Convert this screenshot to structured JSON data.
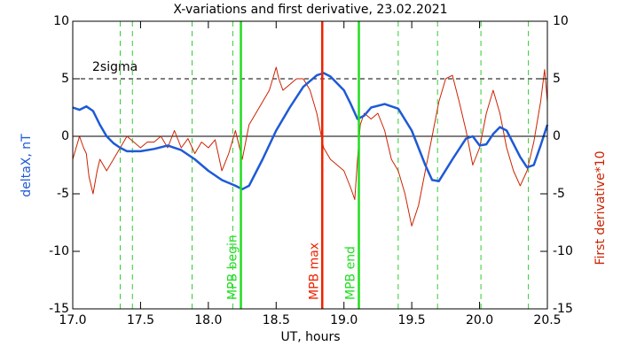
{
  "chart_data": {
    "type": "line",
    "title": "X-variations and first derivative, 23.02.2021",
    "xlabel": "UT, hours",
    "ylabel": "deltaX, nT",
    "y2label": "First derivative*10",
    "xlim": [
      17.0,
      20.5
    ],
    "xticks": [
      {
        "value": 17,
        "label": "17.0"
      },
      {
        "value": 17.5,
        "label": "17.5"
      },
      {
        "value": 18,
        "label": "18.0"
      },
      {
        "value": 18.5,
        "label": "18.5"
      },
      {
        "value": 19,
        "label": "19.0"
      },
      {
        "value": 19.5,
        "label": "19.5"
      },
      {
        "value": 20,
        "label": "20.0"
      },
      {
        "value": 20.5,
        "label": "20.5"
      }
    ],
    "ylim": [
      -15,
      10
    ],
    "yticks": [
      10,
      5,
      0,
      -5,
      -10,
      -15
    ],
    "y2lim": [
      -15,
      10
    ],
    "y2ticks": [
      10,
      5,
      0,
      -5,
      -10,
      -15
    ],
    "series": [
      {
        "name": "deltaX, nT",
        "color": "#1e5ad6",
        "x": [
          17.0,
          17.05,
          17.1,
          17.15,
          17.2,
          17.25,
          17.3,
          17.35,
          17.4,
          17.5,
          17.6,
          17.7,
          17.8,
          17.9,
          18.0,
          18.1,
          18.2,
          18.25,
          18.3,
          18.4,
          18.5,
          18.6,
          18.7,
          18.8,
          18.85,
          18.9,
          19.0,
          19.05,
          19.1,
          19.15,
          19.2,
          19.3,
          19.4,
          19.5,
          19.6,
          19.65,
          19.7,
          19.8,
          19.9,
          19.95,
          20.0,
          20.05,
          20.1,
          20.15,
          20.2,
          20.3,
          20.35,
          20.4,
          20.45,
          20.5
        ],
        "values": [
          2.5,
          2.3,
          2.6,
          2.2,
          1.0,
          0.0,
          -0.6,
          -1.0,
          -1.3,
          -1.3,
          -1.1,
          -0.8,
          -1.2,
          -2.0,
          -3.0,
          -3.8,
          -4.3,
          -4.6,
          -4.3,
          -2.0,
          0.5,
          2.5,
          4.3,
          5.3,
          5.5,
          5.2,
          4.0,
          2.8,
          1.5,
          1.8,
          2.5,
          2.8,
          2.4,
          0.5,
          -2.5,
          -3.8,
          -3.9,
          -2.0,
          -0.2,
          0.0,
          -0.8,
          -0.7,
          0.2,
          0.8,
          0.5,
          -1.8,
          -2.7,
          -2.5,
          -0.8,
          1.0
        ]
      },
      {
        "name": "First derivative*10",
        "color": "#cc2200",
        "axis": "y2",
        "x": [
          17.0,
          17.05,
          17.08,
          17.1,
          17.12,
          17.15,
          17.18,
          17.2,
          17.25,
          17.3,
          17.35,
          17.4,
          17.45,
          17.5,
          17.55,
          17.6,
          17.65,
          17.7,
          17.75,
          17.8,
          17.85,
          17.9,
          17.95,
          18.0,
          18.05,
          18.1,
          18.15,
          18.2,
          18.25,
          18.3,
          18.35,
          18.4,
          18.45,
          18.5,
          18.52,
          18.55,
          18.6,
          18.65,
          18.7,
          18.75,
          18.8,
          18.85,
          18.9,
          18.95,
          19.0,
          19.05,
          19.08,
          19.1,
          19.12,
          19.15,
          19.2,
          19.25,
          19.3,
          19.35,
          19.4,
          19.45,
          19.5,
          19.55,
          19.6,
          19.65,
          19.7,
          19.75,
          19.8,
          19.85,
          19.9,
          19.95,
          20.0,
          20.05,
          20.1,
          20.15,
          20.2,
          20.25,
          20.3,
          20.35,
          20.4,
          20.45,
          20.48,
          20.5
        ],
        "values": [
          -2,
          0,
          -1,
          -1.5,
          -3.5,
          -5,
          -3,
          -2,
          -3,
          -2,
          -1,
          0,
          -0.5,
          -1,
          -0.5,
          -0.5,
          0,
          -1,
          0.5,
          -1,
          -0.2,
          -1.5,
          -0.5,
          -1,
          -0.3,
          -3,
          -1.5,
          0.5,
          -2,
          1,
          2,
          3,
          4,
          6,
          5,
          4,
          4.5,
          5,
          5,
          4,
          2,
          -1,
          -2,
          -2.5,
          -3,
          -4.5,
          -5.5,
          -2,
          1,
          2,
          1.5,
          2,
          0.5,
          -2,
          -3,
          -5,
          -7.8,
          -6,
          -3,
          0,
          3,
          5,
          5.3,
          3,
          0.5,
          -2.5,
          -1,
          2,
          4,
          2,
          -1,
          -3,
          -4.3,
          -3,
          -0.5,
          3,
          5.8,
          3
        ]
      }
    ],
    "threshold": {
      "label": "2sigma",
      "y": 5
    },
    "dashed_lines": {
      "color": "#33cc33",
      "x": [
        17.35,
        17.44,
        17.88,
        18.18,
        19.4,
        19.69,
        20.01,
        20.36
      ]
    },
    "markers": [
      {
        "label": "MPB begin",
        "x": 18.24,
        "color": "#22dd22"
      },
      {
        "label": "MPB max",
        "x": 18.84,
        "color": "#ee2200"
      },
      {
        "label": "MPB end",
        "x": 19.11,
        "color": "#22dd22"
      }
    ]
  }
}
